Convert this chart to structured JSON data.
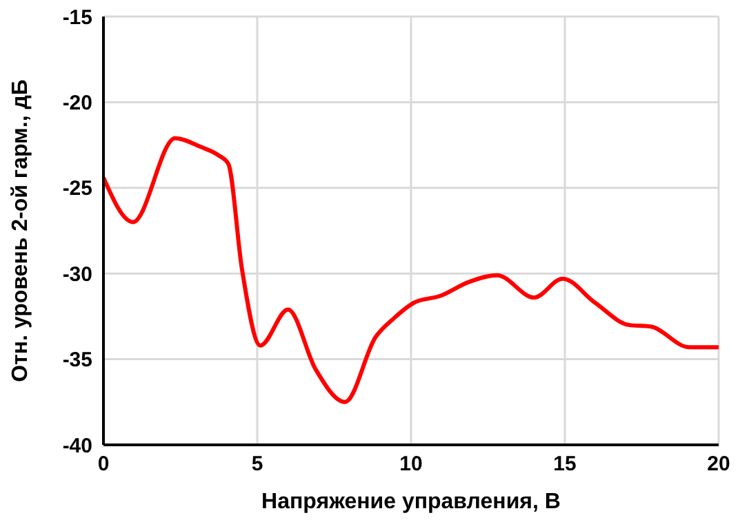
{
  "chart_data": {
    "type": "line",
    "xlabel": "Напряжение управления, В",
    "ylabel": "Отн. уровень 2-ой гарм., дБ",
    "xlim": [
      0,
      20
    ],
    "xticks": [
      0,
      5,
      10,
      15,
      20
    ],
    "ylim": [
      -40,
      -15
    ],
    "yticks": [
      -40,
      -35,
      -30,
      -25,
      -20,
      -15
    ],
    "grid": true,
    "marker": "none",
    "line_style": "solid",
    "series": [
      {
        "color": "#ff0000",
        "x": [
          0,
          0.96,
          2.33,
          3.15,
          3.74,
          4.06,
          4.5,
          5.1,
          6.0,
          6.9,
          7.85,
          8.85,
          9.45,
          10.1,
          10.96,
          11.87,
          12.8,
          14.0,
          14.93,
          15.98,
          17.08,
          17.8,
          19.04,
          20
        ],
        "values": [
          -24.4,
          -27.0,
          -22.1,
          -22.6,
          -23.1,
          -23.6,
          -29.7,
          -34.2,
          -32.1,
          -35.6,
          -37.5,
          -33.7,
          -32.6,
          -31.7,
          -31.3,
          -30.5,
          -30.1,
          -31.4,
          -30.3,
          -31.7,
          -33.0,
          -33.1,
          -34.3,
          -34.3
        ]
      }
    ]
  }
}
